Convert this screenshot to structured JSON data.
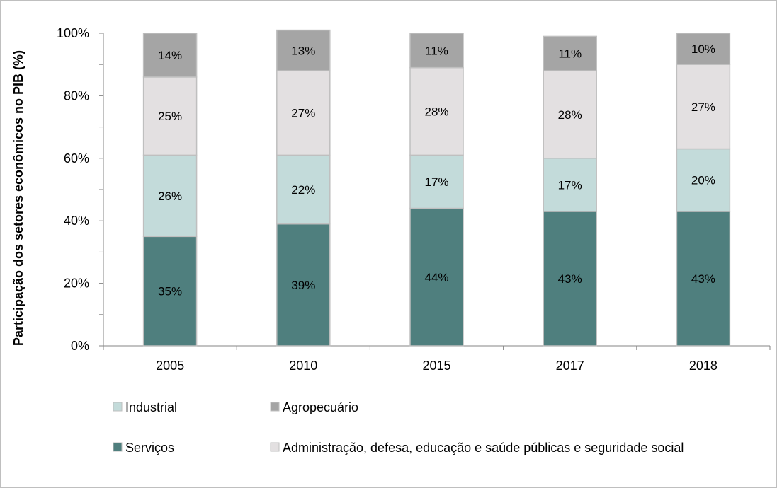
{
  "chart_data": {
    "type": "bar",
    "stacked": true,
    "percent_stacked": true,
    "title": "",
    "xlabel": "",
    "ylabel": "Participação dos setores econômicos no PIB (%)",
    "ylim": [
      0,
      100
    ],
    "yticks": [
      "0%",
      "20%",
      "40%",
      "60%",
      "80%",
      "100%"
    ],
    "categories": [
      "2005",
      "2010",
      "2015",
      "2017",
      "2018"
    ],
    "series": [
      {
        "name": "Serviços",
        "color": "#4f7f7e",
        "values": [
          35,
          39,
          44,
          43,
          43
        ],
        "labels": [
          "35%",
          "39%",
          "44%",
          "43%",
          "43%"
        ]
      },
      {
        "name": "Industrial",
        "color": "#c3dbda",
        "values": [
          26,
          22,
          17,
          17,
          20
        ],
        "labels": [
          "26%",
          "22%",
          "17%",
          "17%",
          "20%"
        ]
      },
      {
        "name": "Administração, defesa, educação e saúde públicas e seguridade social",
        "color": "#e3e0e1",
        "values": [
          25,
          27,
          28,
          28,
          27
        ],
        "labels": [
          "25%",
          "27%",
          "28%",
          "28%",
          "27%"
        ]
      },
      {
        "name": "Agropecuário",
        "color": "#a5a5a5",
        "values": [
          14,
          13,
          11,
          11,
          10
        ],
        "labels": [
          "14%",
          "13%",
          "11%",
          "11%",
          "10%"
        ]
      }
    ],
    "legend": {
      "placement": "bottom",
      "order": [
        "Industrial",
        "Agropecuário",
        "Serviços",
        "Administração, defesa, educação e saúde públicas e seguridade social"
      ]
    },
    "grid": false
  }
}
